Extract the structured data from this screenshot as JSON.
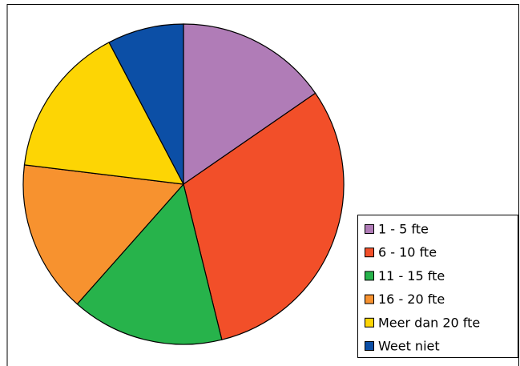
{
  "chart_data": {
    "type": "pie",
    "categories": [
      "1 - 5 fte",
      "6 - 10 fte",
      "11 - 15 fte",
      "16 - 20 fte",
      "Meer dan 20 fte",
      "Weet niet"
    ],
    "values": [
      15.4,
      30.8,
      15.4,
      15.4,
      15.4,
      7.7
    ],
    "colors": [
      "#b07cb7",
      "#f24f29",
      "#27b34b",
      "#f7922f",
      "#fdd504",
      "#0c4fa6"
    ],
    "legend": "bottom-right"
  }
}
